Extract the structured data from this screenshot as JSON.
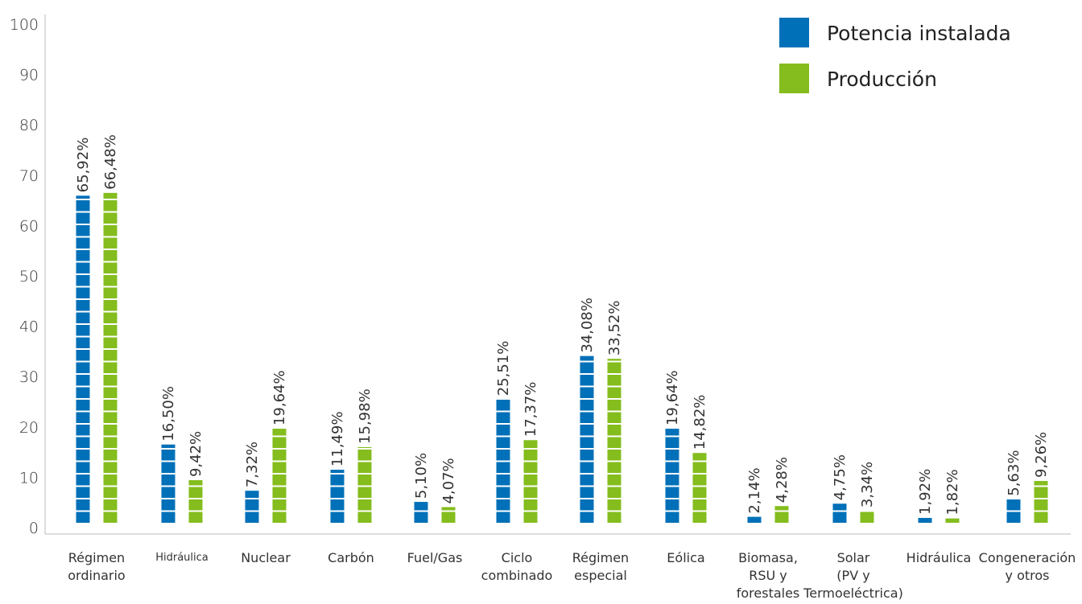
{
  "chart_data": {
    "type": "bar",
    "ylim": [
      0,
      100
    ],
    "yticks": [
      0,
      10,
      20,
      30,
      40,
      50,
      60,
      70,
      80,
      90,
      100
    ],
    "categories": [
      [
        "Régimen",
        "ordinario"
      ],
      [
        "Hidráulica"
      ],
      [
        "Nuclear"
      ],
      [
        "Carbón"
      ],
      [
        "Fuel/Gas"
      ],
      [
        "Ciclo",
        "combinado"
      ],
      [
        "Régimen",
        "especial"
      ],
      [
        "Eólica"
      ],
      [
        "Biomasa,",
        "RSU y",
        "forestales"
      ],
      [
        "Solar",
        "(PV y",
        "Termoeléctrica)"
      ],
      [
        "Hidráulica"
      ],
      [
        "Congeneración",
        "y otros"
      ]
    ],
    "series": [
      {
        "name": "Potencia instalada",
        "color": "#0070b8",
        "values": [
          65.92,
          16.5,
          7.32,
          11.49,
          5.1,
          25.51,
          34.08,
          19.64,
          2.14,
          4.75,
          1.92,
          5.63
        ],
        "labels": [
          "65,92%",
          "16,50%",
          "7,32%",
          "11,49%",
          "5,10%",
          "25,51%",
          "34,08%",
          "19,64%",
          "2,14%",
          "4,75%",
          "1,92%",
          "5,63%"
        ]
      },
      {
        "name": "Producción",
        "color": "#84bd1d",
        "values": [
          66.48,
          9.42,
          19.64,
          15.98,
          4.07,
          17.37,
          33.52,
          14.82,
          4.28,
          3.34,
          1.82,
          9.26
        ],
        "labels": [
          "66,48%",
          "9,42%",
          "19,64%",
          "15,98%",
          "4,07%",
          "17,37%",
          "33,52%",
          "14,82%",
          "4,28%",
          "3,34%",
          "1,82%",
          "9,26%"
        ]
      }
    ],
    "legend": "top-right",
    "grid": false
  }
}
